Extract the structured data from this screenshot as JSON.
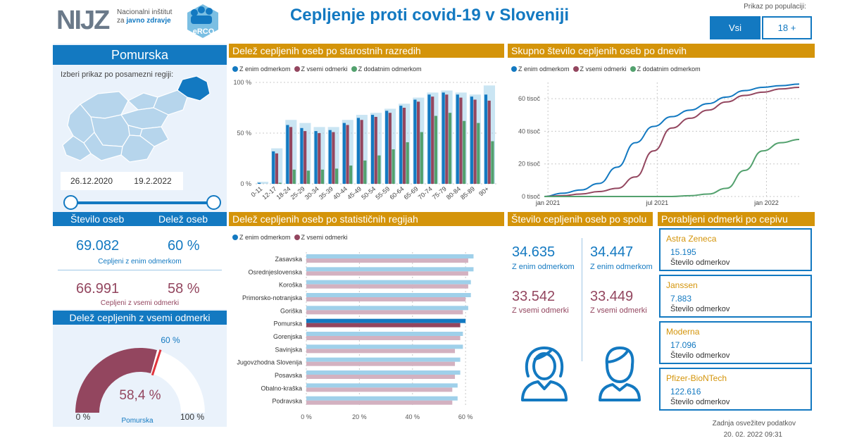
{
  "header": {
    "logo_text": "NIJZ",
    "institute_line1": "Nacionalni inštitut",
    "institute_line2_a": "za ",
    "institute_line2_b": "javno zdravje",
    "erco_label": "eRCO",
    "title": "Cepljenje proti covid-19 v Sloveniji",
    "population_label": "Prikaz po populaciji:",
    "pop_all": "Vsi",
    "pop_adult": "18 +"
  },
  "colors": {
    "blue": "#1379c1",
    "maroon": "#93465f",
    "green": "#53a16e",
    "gold": "#d4940a",
    "light_blue": "#9fd0ea",
    "light_maroon": "#d3b1c0",
    "light_green": "#a9d6b0"
  },
  "region": {
    "name": "Pomurska",
    "select_label": "Izberi prikaz po posamezni regiji:",
    "date_start": "26.12.2020",
    "date_end": "19.2.2022"
  },
  "stats": {
    "count_header": "Število oseb",
    "share_header": "Delež oseb",
    "one_dose_count": "69.082",
    "one_dose_pct": "60 %",
    "one_dose_label": "Cepljeni z enim odmerkom",
    "all_dose_count": "66.991",
    "all_dose_pct": "58 %",
    "all_dose_label": "Cepljeni z vsemi odmerki"
  },
  "gauge": {
    "title": "Delež cepljenih z vsemi odmerki",
    "value": 58.4,
    "value_label": "58,4 %",
    "target": 60,
    "target_label": "60 %",
    "min_label": "0 %",
    "max_label": "100 %",
    "region_label": "Pomurska"
  },
  "age_chart": {
    "title": "Delež cepljenih oseb po starostnih razredih",
    "legend": [
      "Z enim odmerkom",
      "Z vsemi odmerki",
      "Z dodatnim odmerkom"
    ],
    "y_ticks": [
      "0 %",
      "50 %",
      "100 %"
    ],
    "chart_data": {
      "type": "bar",
      "categories": [
        "0-11",
        "12-17",
        "18-24",
        "25-29",
        "30-34",
        "35-39",
        "40-44",
        "45-49",
        "50-54",
        "55-59",
        "60-64",
        "65-69",
        "70-74",
        "75-79",
        "80-84",
        "85-89",
        "90+"
      ],
      "series": [
        {
          "name": "Z enim odmerkom",
          "values": [
            1,
            32,
            58,
            55,
            52,
            53,
            60,
            65,
            68,
            72,
            77,
            83,
            88,
            90,
            88,
            86,
            88
          ]
        },
        {
          "name": "Z vsemi odmerki",
          "values": [
            0,
            30,
            56,
            52,
            50,
            51,
            58,
            63,
            66,
            70,
            75,
            81,
            86,
            88,
            85,
            83,
            82
          ]
        },
        {
          "name": "Z dodatnim odmerkom",
          "values": [
            0,
            1,
            14,
            13,
            14,
            15,
            18,
            23,
            28,
            34,
            41,
            51,
            67,
            70,
            62,
            60,
            42
          ]
        }
      ],
      "shadow": [
        2,
        35,
        63,
        60,
        56,
        56,
        63,
        68,
        70,
        74,
        79,
        85,
        90,
        92,
        90,
        88,
        97
      ],
      "ylim": [
        0,
        100
      ]
    }
  },
  "daily_chart": {
    "title": "Skupno število cepljenih oseb po dnevih",
    "legend": [
      "Z enim odmerkom",
      "Z vsemi odmerki",
      "Z dodatnim odmerkom"
    ],
    "y_ticks": [
      "0 tisoč",
      "20 tisoč",
      "40 tisoč",
      "60 tisoč"
    ],
    "x_ticks": [
      "jan 2021",
      "jul 2021",
      "jan 2022"
    ],
    "chart_data": {
      "type": "line",
      "x_months": [
        0,
        1,
        2,
        3,
        4,
        5,
        6,
        7,
        8,
        9,
        10,
        11,
        12,
        13,
        14
      ],
      "series": [
        {
          "name": "Z enim odmerkom",
          "values": [
            0,
            2,
            4,
            8,
            18,
            33,
            43,
            49,
            53,
            57,
            61,
            65,
            67,
            68,
            69
          ]
        },
        {
          "name": "Z vsemi odmerki",
          "values": [
            0,
            0.5,
            1.5,
            3,
            5,
            12,
            28,
            42,
            48,
            53,
            58,
            62,
            64,
            66,
            67
          ]
        },
        {
          "name": "Z dodatnim odmerkom",
          "values": [
            0,
            0,
            0,
            0,
            0,
            0,
            0,
            0,
            0.5,
            1.5,
            5,
            16,
            28,
            33,
            35
          ]
        }
      ],
      "ylim": [
        0,
        70
      ]
    }
  },
  "region_chart": {
    "title": "Delež cepljenih oseb po statističnih regijah",
    "legend": [
      "Z enim odmerkom",
      "Z vsemi odmerki"
    ],
    "x_ticks": [
      "0 %",
      "20 %",
      "40 %",
      "60 %"
    ],
    "chart_data": {
      "type": "bar",
      "orientation": "horizontal",
      "categories": [
        "Zasavska",
        "Osrednjeslovenska",
        "Koroška",
        "Primorsko-notranjska",
        "Goriška",
        "Pomurska",
        "Gorenjska",
        "Savinjska",
        "Jugovzhodna Slovenija",
        "Posavska",
        "Obalno-kraška",
        "Podravska"
      ],
      "series": [
        {
          "name": "Z enim odmerkom",
          "values": [
            63,
            63,
            62,
            62,
            61,
            60,
            59,
            59,
            58,
            58,
            57,
            57
          ]
        },
        {
          "name": "Z vsemi odmerki",
          "values": [
            61,
            61,
            61,
            60,
            59,
            58,
            58,
            56,
            56,
            56,
            55,
            55
          ]
        }
      ],
      "highlight": "Pomurska",
      "xlim": [
        0,
        65
      ]
    }
  },
  "gender": {
    "title": "Število cepljenih oseb po spolu",
    "female_one": "34.635",
    "female_one_label": "Z enim odmerkom",
    "male_one": "34.447",
    "male_one_label": "Z enim odmerkom",
    "female_all": "33.542",
    "female_all_label": "Z vsemi odmerki",
    "male_all": "33.449",
    "male_all_label": "Z vsemi odmerki"
  },
  "vaccines": {
    "title": "Porabljeni odmerki po cepivu",
    "items": [
      {
        "name": "Astra Zeneca",
        "count": "15.195",
        "label": "Število odmerkov"
      },
      {
        "name": "Janssen",
        "count": "7.883",
        "label": "Število odmerkov"
      },
      {
        "name": "Moderna",
        "count": "17.096",
        "label": "Število odmerkov"
      },
      {
        "name": "Pfizer-BioNTech",
        "count": "122.616",
        "label": "Število odmerkov"
      }
    ]
  },
  "footer": {
    "refresh_label": "Zadnja osvežitev podatkov",
    "refresh_time": "20. 02. 2022 09:31"
  }
}
